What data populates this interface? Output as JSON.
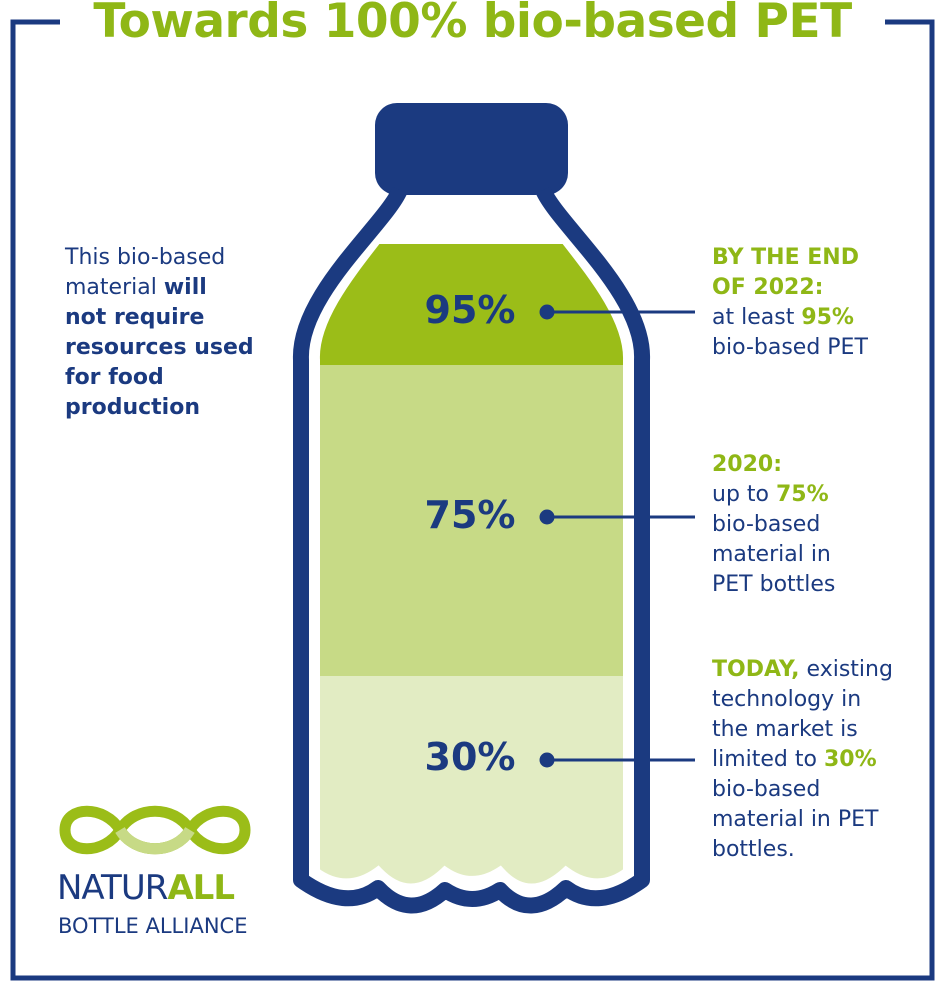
{
  "title": "Towards 100% bio-based PET",
  "levels": [
    {
      "label": "95%",
      "value": 95
    },
    {
      "label": "75%",
      "value": 75
    },
    {
      "label": "30%",
      "value": 30
    }
  ],
  "left_note": {
    "line1": "This bio-based",
    "line2a": "material ",
    "line2b": "will",
    "line3": "not require",
    "line4": "resources used",
    "line5": "for food",
    "line6": "production"
  },
  "note_2022": {
    "line1": "BY THE END",
    "line2": "OF 2022:",
    "line3a": "at least ",
    "line3b": "95%",
    "line4": "bio-based PET"
  },
  "note_2020": {
    "line1": "2020:",
    "line2a": "up to ",
    "line2b": "75%",
    "line3": "bio-based",
    "line4": "material in",
    "line5": "PET bottles"
  },
  "note_today": {
    "line1a": "TODAY,",
    "line1b": " existing",
    "line2": "technology in",
    "line3": "the market is",
    "line4a": "limited to ",
    "line4b": "30%",
    "line5": "bio-based",
    "line6": "material in PET",
    "line7": "bottles."
  },
  "logo": {
    "name_a": "NATUR",
    "name_b": "ALL",
    "sub": "BOTTLE ALLIANCE",
    "icon": "infinity-loop-icon"
  },
  "colors": {
    "navy": "#1b3a80",
    "green": "#8fb716",
    "light_green": "#cadc8b",
    "pale_green": "#e2ecc3"
  }
}
